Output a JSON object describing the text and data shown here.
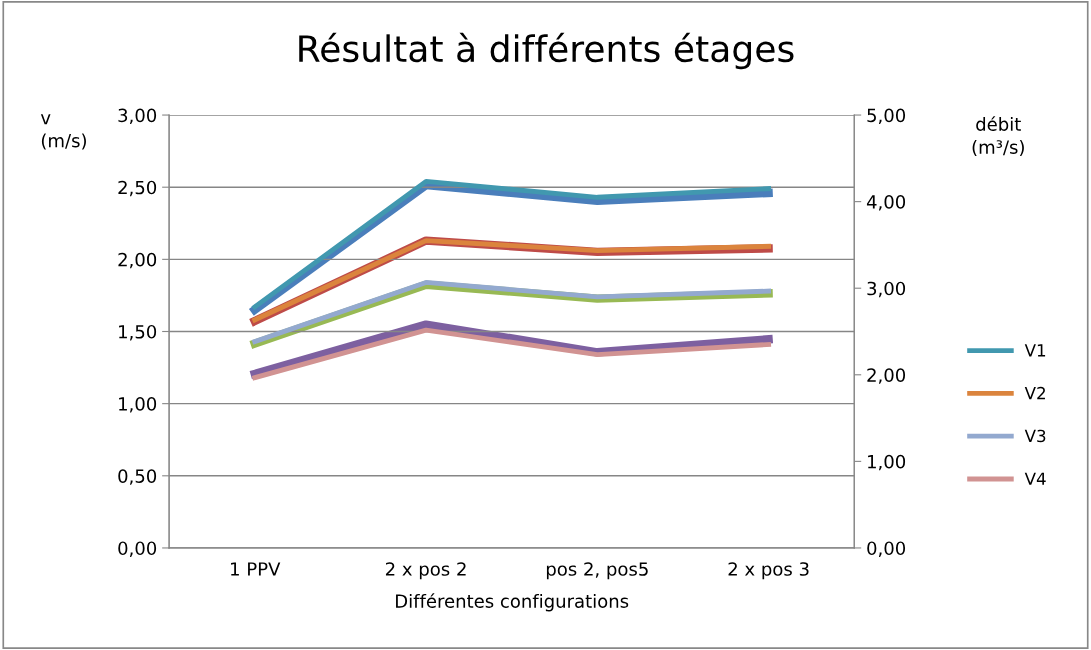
{
  "chart_data": {
    "type": "line",
    "title": "Résultat à différents étages",
    "xlabel": "Différentes configurations",
    "ylabel": "v\n(m/s)",
    "y2label": "débit\n(m³/s)",
    "categories": [
      "1 PPV",
      "2 x pos 2",
      "pos 2, pos5",
      "2 x pos 3"
    ],
    "ylim": [
      0,
      3
    ],
    "yticks": [
      {
        "value": 0,
        "label": "0,00"
      },
      {
        "value": 0.5,
        "label": "0,50"
      },
      {
        "value": 1,
        "label": "1,00"
      },
      {
        "value": 1.5,
        "label": "1,50"
      },
      {
        "value": 2,
        "label": "2,00"
      },
      {
        "value": 2.5,
        "label": "2,50"
      },
      {
        "value": 3,
        "label": "3,00"
      }
    ],
    "y2lim": [
      0,
      5
    ],
    "y2ticks": [
      {
        "value": 0,
        "label": "0,00"
      },
      {
        "value": 1,
        "label": "1,00"
      },
      {
        "value": 2,
        "label": "2,00"
      },
      {
        "value": 3,
        "label": "3,00"
      },
      {
        "value": 4,
        "label": "4,00"
      },
      {
        "value": 5,
        "label": "5,00"
      }
    ],
    "grid": "y",
    "legend": "right",
    "marker": "none",
    "line_style": "solid",
    "series": [
      {
        "axis": "y2",
        "color": "#4a7ebb",
        "values": [
          2.75,
          4.19,
          4.01,
          4.1
        ]
      },
      {
        "axis": "y2",
        "color": "#be4b48",
        "values": [
          2.62,
          3.55,
          3.42,
          3.46
        ]
      },
      {
        "axis": "y2",
        "color": "#98b954",
        "values": [
          2.36,
          3.04,
          2.88,
          2.94
        ]
      },
      {
        "axis": "y2",
        "color": "#7d60a0",
        "values": [
          2.01,
          2.58,
          2.26,
          2.41
        ]
      },
      {
        "name": "V1",
        "color": "#4198af",
        "values": [
          1.67,
          2.54,
          2.43,
          2.49
        ]
      },
      {
        "name": "V2",
        "color": "#db843d",
        "values": [
          1.58,
          2.13,
          2.06,
          2.09
        ]
      },
      {
        "name": "V3",
        "color": "#93a9cf",
        "values": [
          1.43,
          1.84,
          1.74,
          1.78
        ]
      },
      {
        "name": "V4",
        "color": "#d19392",
        "values": [
          1.18,
          1.51,
          1.34,
          1.41
        ]
      }
    ]
  }
}
